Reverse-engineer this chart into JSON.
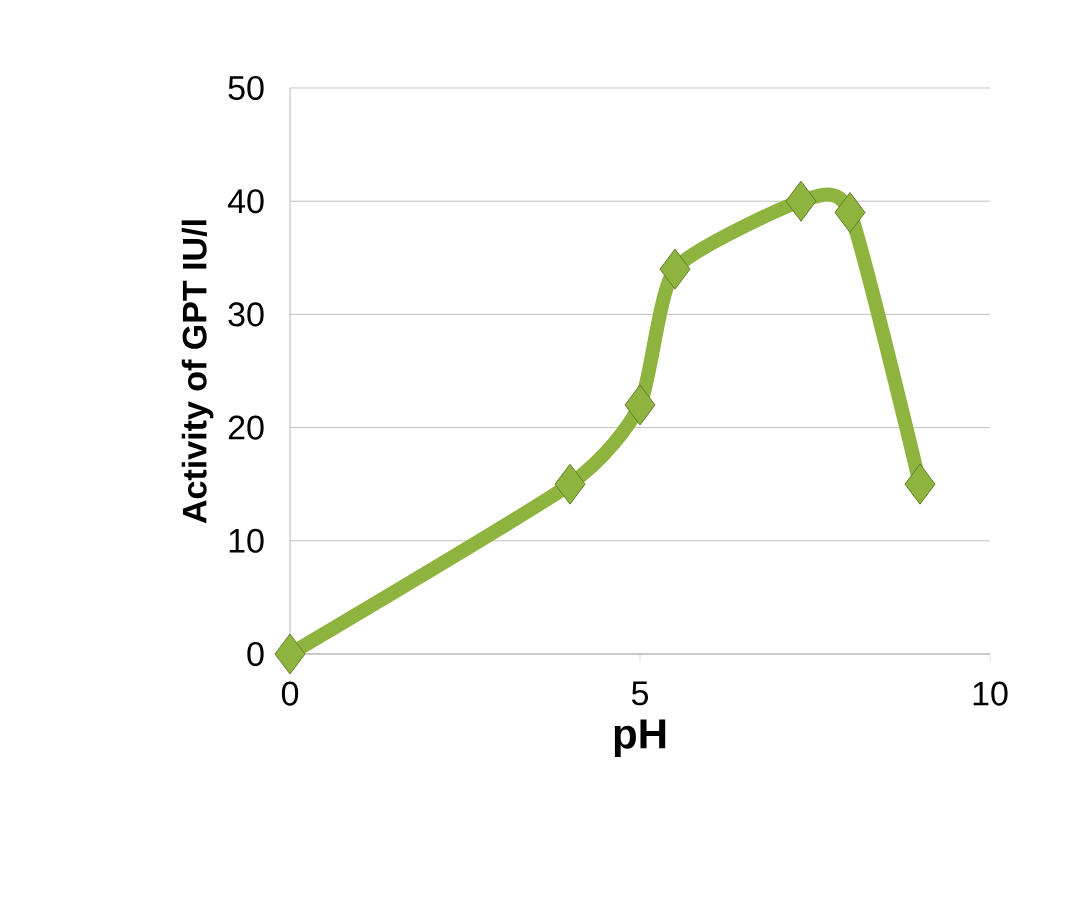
{
  "chart_data": {
    "type": "line",
    "xlabel": "pH",
    "ylabel": "Activity of GPT IU/l",
    "x": [
      0,
      4,
      5,
      5.5,
      7.3,
      8,
      9
    ],
    "series": [
      {
        "color": "#8eb43f",
        "values": [
          0,
          15,
          22,
          34,
          40,
          39,
          15
        ]
      }
    ],
    "xlim": [
      0,
      10
    ],
    "xticks": [
      0,
      5,
      10
    ],
    "ylim": [
      0,
      50
    ],
    "yticks": [
      0,
      10,
      20,
      30,
      40,
      50
    ],
    "grid": "y",
    "marker": "diamond",
    "line_style": "solid"
  }
}
